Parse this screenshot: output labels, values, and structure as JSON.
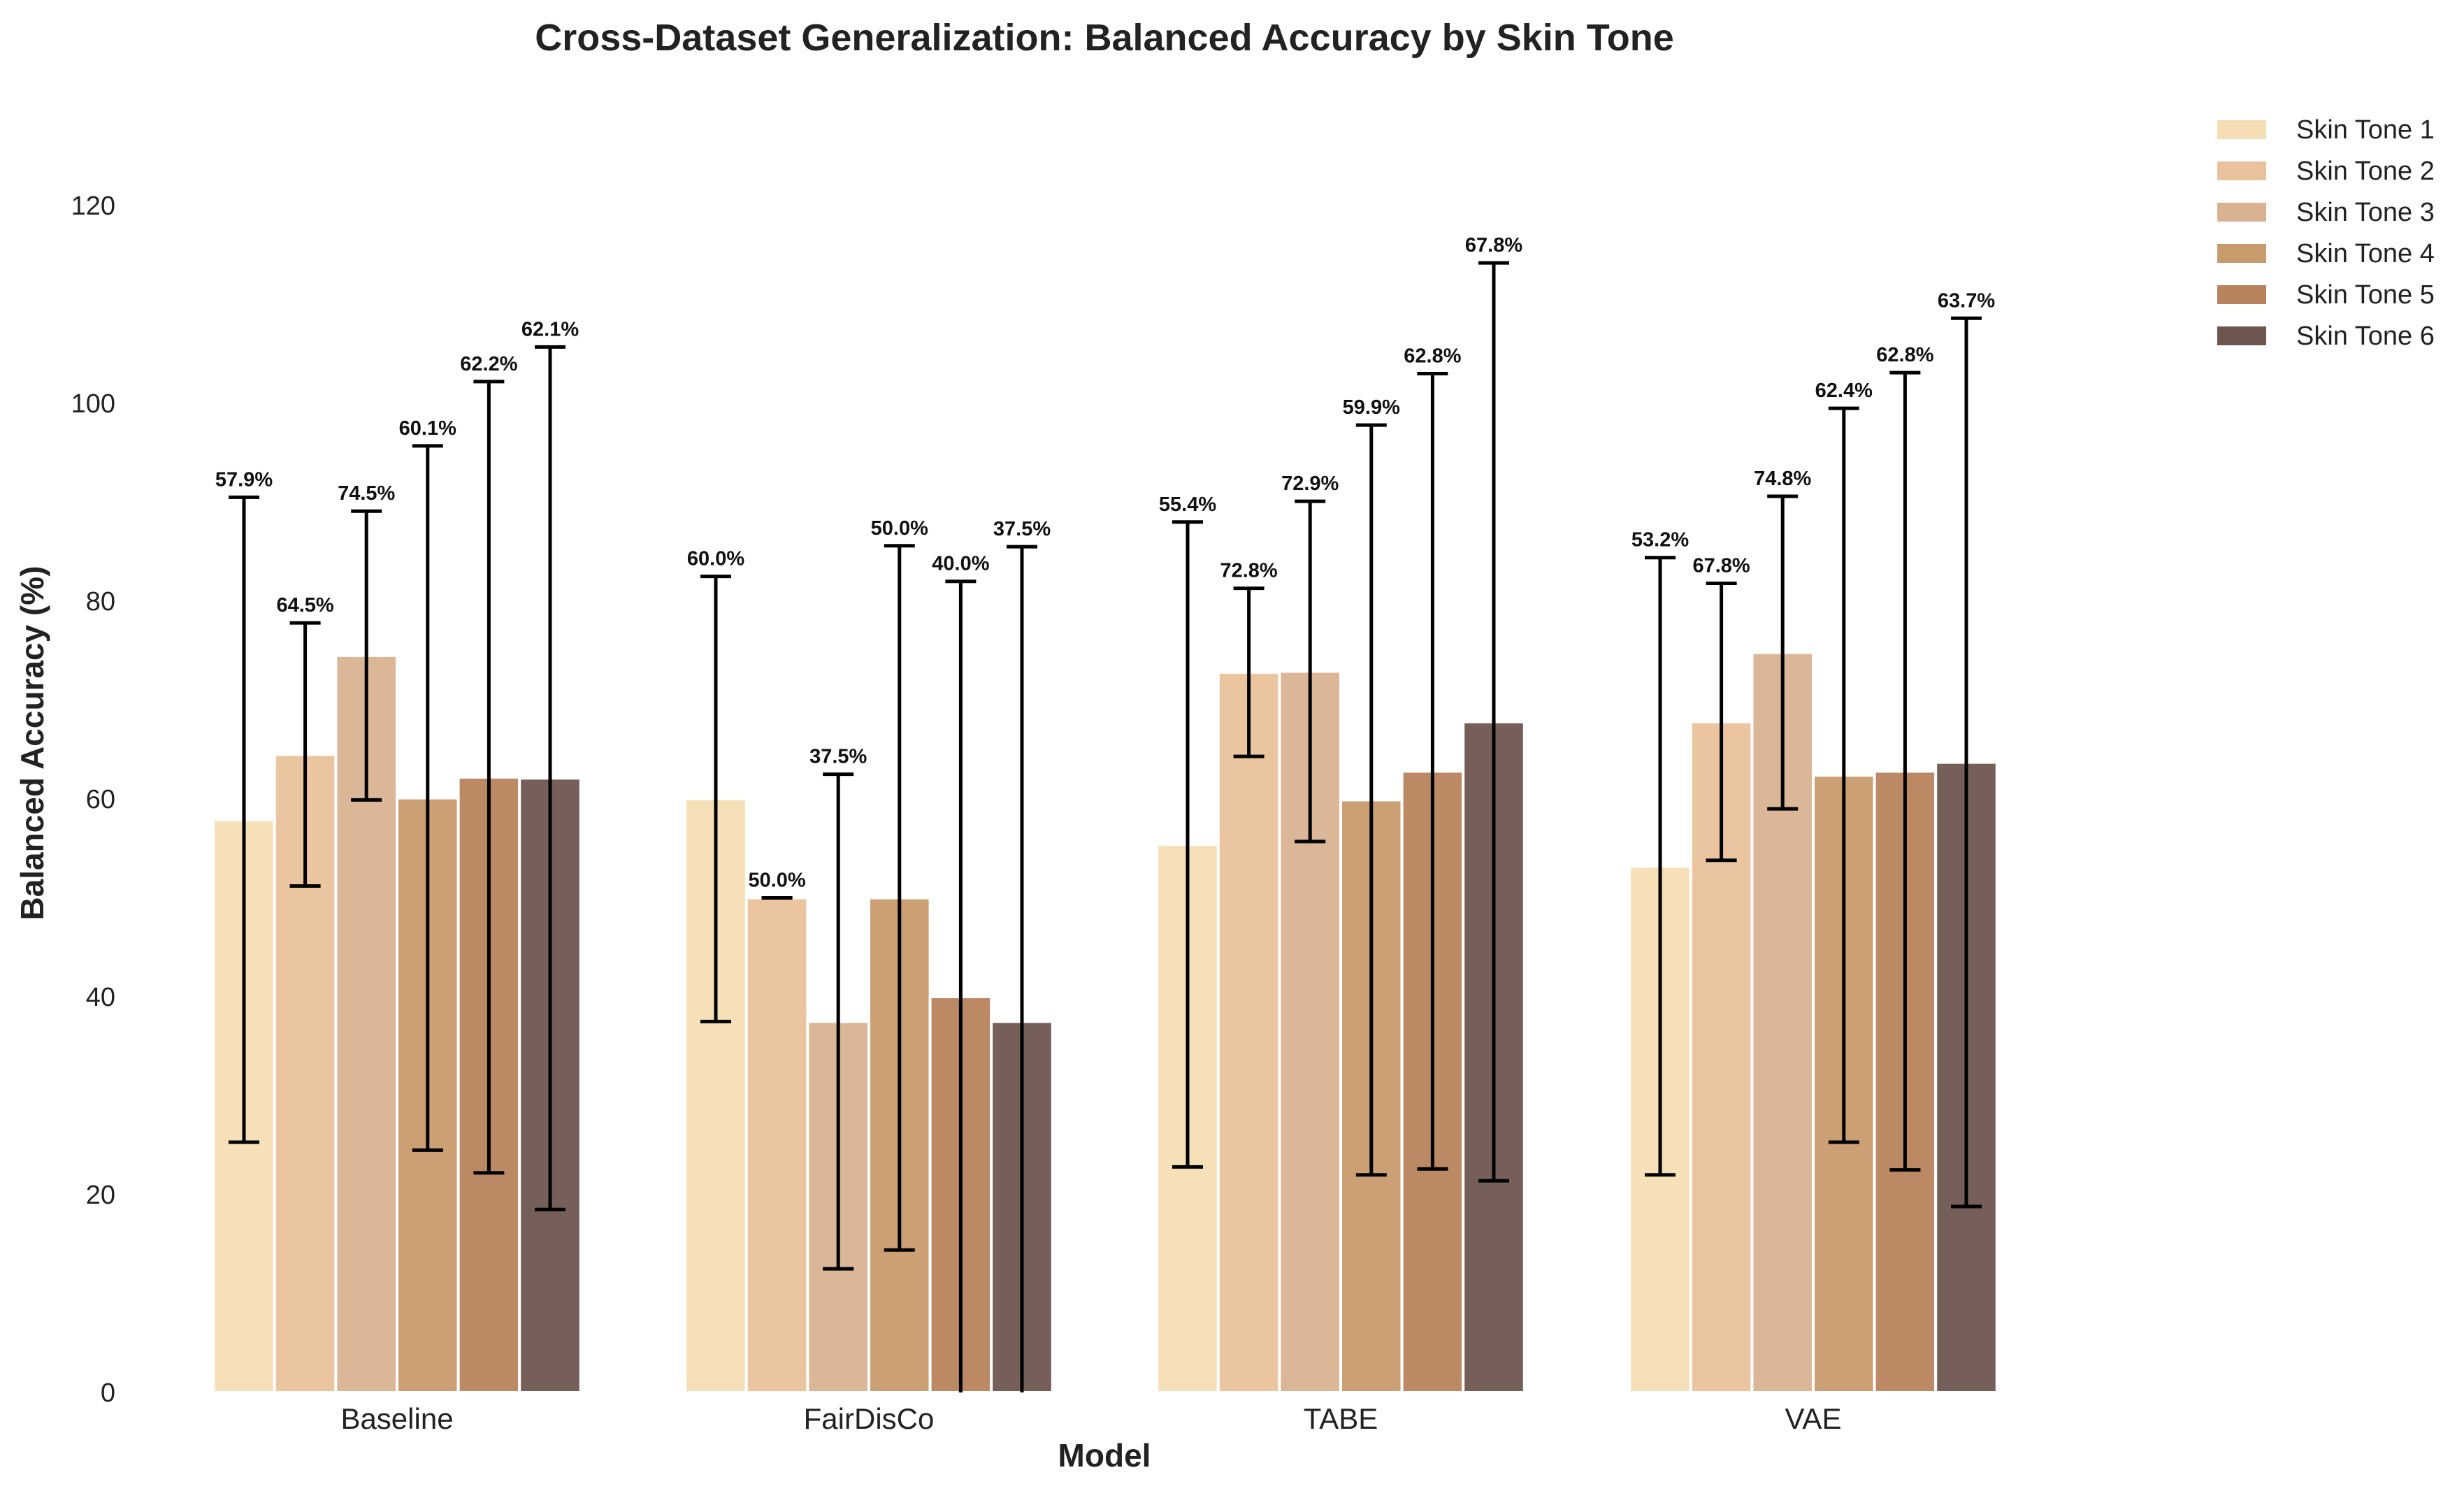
{
  "chart_data": {
    "type": "bar",
    "title": "Cross-Dataset Generalization: Balanced Accuracy by Skin Tone",
    "xlabel": "Model",
    "ylabel": "Balanced Accuracy (%)",
    "ylim": [
      0,
      132
    ],
    "yticks": [
      0,
      20,
      40,
      60,
      80,
      100,
      120
    ],
    "grid": false,
    "legend_position": "top-right, outside",
    "categories": [
      "Baseline",
      "FairDisCo",
      "TABE",
      "VAE"
    ],
    "series": [
      {
        "name": "Skin Tone 1",
        "color": "#f5deb3",
        "values": [
          57.9,
          60.0,
          55.4,
          53.2
        ],
        "labels": [
          "57.9%",
          "60.0%",
          "55.4%",
          "53.2%"
        ],
        "error": [
          32.6,
          22.5,
          32.6,
          31.2
        ]
      },
      {
        "name": "Skin Tone 2",
        "color": "#e9c29b",
        "values": [
          64.5,
          50.0,
          72.8,
          67.8
        ],
        "labels": [
          "64.5%",
          "50.0%",
          "72.8%",
          "67.8%"
        ],
        "error": [
          13.3,
          0.0,
          8.5,
          14.0
        ]
      },
      {
        "name": "Skin Tone 3",
        "color": "#d9b391",
        "values": [
          74.5,
          37.5,
          72.9,
          74.8
        ],
        "labels": [
          "74.5%",
          "37.5%",
          "72.9%",
          "74.8%"
        ],
        "error": [
          14.6,
          25.0,
          17.2,
          15.8
        ]
      },
      {
        "name": "Skin Tone 4",
        "color": "#c89b6d",
        "values": [
          60.1,
          50.0,
          59.9,
          62.4
        ],
        "labels": [
          "60.1%",
          "50.0%",
          "59.9%",
          "62.4%"
        ],
        "error": [
          35.6,
          35.6,
          37.9,
          37.1
        ]
      },
      {
        "name": "Skin Tone 5",
        "color": "#b7835c",
        "values": [
          62.2,
          40.0,
          62.8,
          62.8
        ],
        "labels": [
          "62.2%",
          "40.0%",
          "62.8%",
          "62.8%"
        ],
        "error": [
          40.0,
          42.0,
          40.2,
          40.3
        ]
      },
      {
        "name": "Skin Tone 6",
        "color": "#6f5550",
        "values": [
          62.1,
          37.5,
          67.8,
          63.7
        ],
        "labels": [
          "62.1%",
          "37.5%",
          "67.8%",
          "63.7%"
        ],
        "error": [
          43.6,
          48.0,
          46.4,
          44.9
        ]
      }
    ]
  }
}
